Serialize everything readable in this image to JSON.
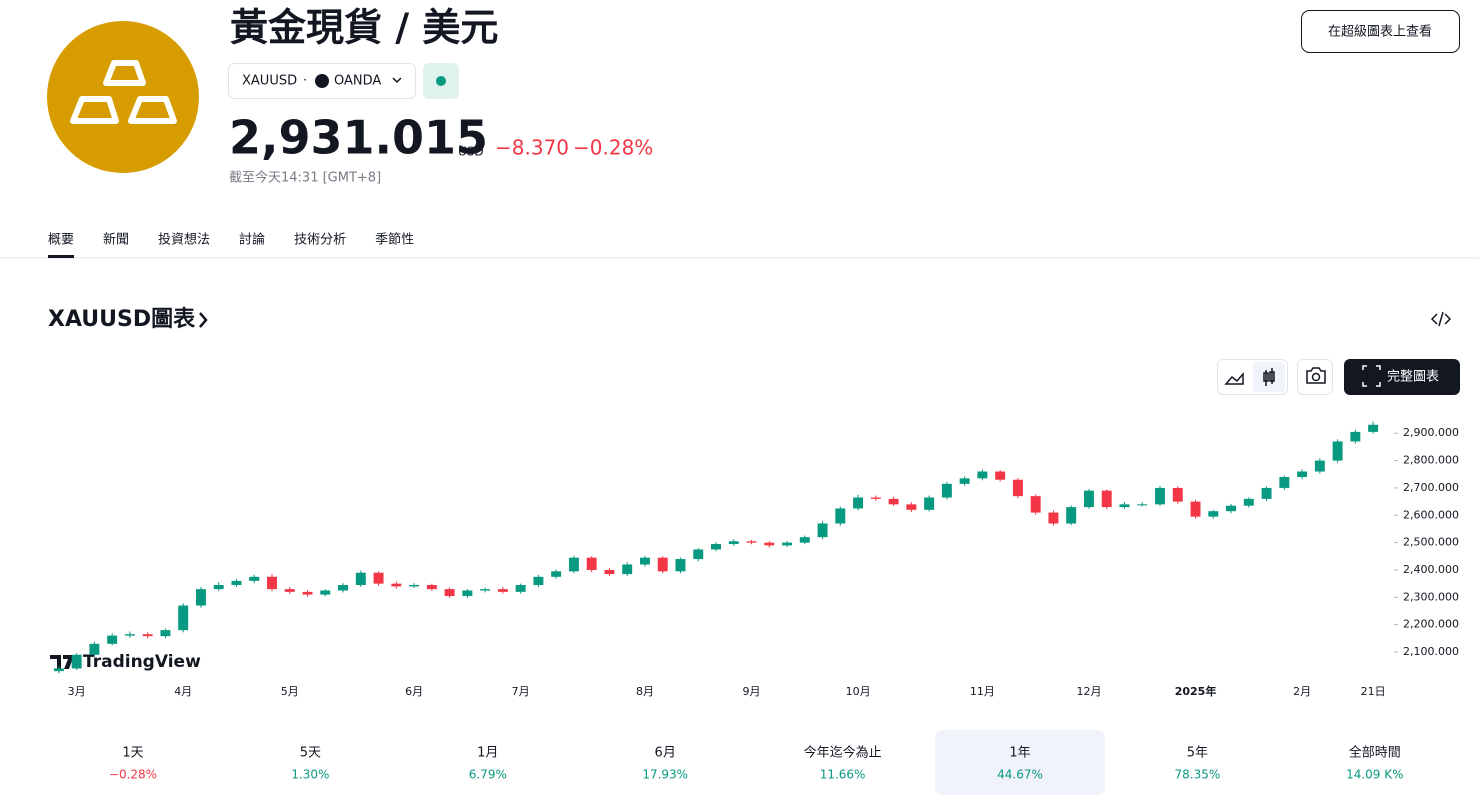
{
  "header": {
    "title": "黃金現貨 / 美元",
    "symbol": "XAUUSD",
    "separator": "·",
    "exchange": "OANDA",
    "price": "2,931.015",
    "currency": "USD",
    "change": "−8.370",
    "change_percent": "−0.28%",
    "change_color": "#f23645",
    "timestamp": "截至今天14:31 [GMT+8]",
    "supercharts_button": "在超級圖表上查看"
  },
  "tabs": [
    "概要",
    "新聞",
    "投資想法",
    "討論",
    "技術分析",
    "季節性"
  ],
  "section_title": "XAUUSD圖表",
  "full_chart_button": "完整圖表",
  "watermark": "TradingView",
  "chart_data": {
    "type": "candlestick",
    "up_color": "#089981",
    "down_color": "#f23645",
    "categories": [
      null,
      "3月",
      null,
      null,
      null,
      null,
      null,
      "4月",
      null,
      null,
      null,
      null,
      null,
      "5月",
      null,
      null,
      null,
      null,
      null,
      null,
      "6月",
      null,
      null,
      null,
      null,
      null,
      "7月",
      null,
      null,
      null,
      null,
      null,
      null,
      "8月",
      null,
      null,
      null,
      null,
      null,
      "9月",
      null,
      null,
      null,
      null,
      null,
      "10月",
      null,
      null,
      null,
      null,
      null,
      null,
      "11月",
      null,
      null,
      null,
      null,
      null,
      "12月",
      null,
      null,
      null,
      null,
      null,
      "2025年",
      null,
      null,
      null,
      null,
      null,
      "2月",
      null,
      null,
      null,
      "21日"
    ],
    "open": [
      2030,
      2040,
      2090,
      2130,
      2160,
      2165,
      2158,
      2180,
      2270,
      2330,
      2345,
      2360,
      2375,
      2330,
      2320,
      2310,
      2325,
      2345,
      2390,
      2350,
      2340,
      2345,
      2330,
      2305,
      2325,
      2330,
      2320,
      2345,
      2375,
      2395,
      2445,
      2400,
      2385,
      2420,
      2445,
      2395,
      2440,
      2475,
      2495,
      2505,
      2500,
      2490,
      2500,
      2520,
      2570,
      2625,
      2665,
      2660,
      2640,
      2620,
      2665,
      2715,
      2735,
      2760,
      2730,
      2670,
      2610,
      2570,
      2630,
      2690,
      2630,
      2640,
      2640,
      2700,
      2650,
      2595,
      2615,
      2635,
      2660,
      2700,
      2740,
      2760,
      2800,
      2870,
      2905
    ],
    "high": [
      2048,
      2095,
      2138,
      2168,
      2175,
      2172,
      2186,
      2278,
      2338,
      2356,
      2368,
      2382,
      2385,
      2338,
      2326,
      2330,
      2352,
      2398,
      2395,
      2358,
      2352,
      2350,
      2336,
      2330,
      2336,
      2338,
      2350,
      2382,
      2402,
      2452,
      2450,
      2408,
      2428,
      2452,
      2450,
      2446,
      2480,
      2502,
      2512,
      2510,
      2505,
      2506,
      2526,
      2578,
      2632,
      2675,
      2672,
      2668,
      2648,
      2672,
      2722,
      2742,
      2768,
      2766,
      2736,
      2676,
      2618,
      2636,
      2696,
      2695,
      2648,
      2648,
      2708,
      2706,
      2656,
      2620,
      2642,
      2666,
      2706,
      2746,
      2768,
      2808,
      2878,
      2912,
      2942
    ],
    "low": [
      2022,
      2034,
      2084,
      2124,
      2152,
      2150,
      2150,
      2172,
      2262,
      2322,
      2338,
      2352,
      2322,
      2312,
      2302,
      2304,
      2318,
      2338,
      2342,
      2332,
      2334,
      2324,
      2298,
      2298,
      2318,
      2314,
      2314,
      2338,
      2368,
      2388,
      2392,
      2378,
      2378,
      2412,
      2388,
      2388,
      2432,
      2468,
      2488,
      2494,
      2482,
      2484,
      2494,
      2512,
      2562,
      2618,
      2652,
      2634,
      2612,
      2614,
      2658,
      2708,
      2728,
      2724,
      2662,
      2602,
      2562,
      2564,
      2624,
      2622,
      2624,
      2632,
      2634,
      2642,
      2588,
      2588,
      2608,
      2628,
      2652,
      2692,
      2732,
      2752,
      2792,
      2862,
      2898
    ],
    "close": [
      2040,
      2090,
      2130,
      2160,
      2165,
      2158,
      2180,
      2270,
      2330,
      2345,
      2360,
      2375,
      2330,
      2320,
      2310,
      2325,
      2345,
      2390,
      2350,
      2340,
      2345,
      2330,
      2305,
      2325,
      2330,
      2320,
      2345,
      2375,
      2395,
      2445,
      2400,
      2385,
      2420,
      2445,
      2395,
      2440,
      2475,
      2495,
      2505,
      2500,
      2490,
      2500,
      2520,
      2570,
      2625,
      2665,
      2660,
      2640,
      2620,
      2665,
      2715,
      2735,
      2760,
      2730,
      2670,
      2610,
      2570,
      2630,
      2690,
      2630,
      2640,
      2640,
      2700,
      2650,
      2595,
      2615,
      2635,
      2660,
      2700,
      2740,
      2760,
      2800,
      2870,
      2905,
      2931
    ],
    "ylim": [
      2005,
      2985
    ],
    "yticks": [
      {
        "value": 2100,
        "label": "2,100.000"
      },
      {
        "value": 2200,
        "label": "2,200.000"
      },
      {
        "value": 2300,
        "label": "2,300.000"
      },
      {
        "value": 2400,
        "label": "2,400.000"
      },
      {
        "value": 2500,
        "label": "2,500.000"
      },
      {
        "value": 2600,
        "label": "2,600.000"
      },
      {
        "value": 2700,
        "label": "2,700.000"
      },
      {
        "value": 2800,
        "label": "2,800.000"
      },
      {
        "value": 2900,
        "label": "2,900.000"
      }
    ]
  },
  "periods": [
    {
      "label": "1天",
      "change": "−0.28%",
      "color": "#f23645"
    },
    {
      "label": "5天",
      "change": "1.30%",
      "color": "#089981"
    },
    {
      "label": "1月",
      "change": "6.79%",
      "color": "#089981"
    },
    {
      "label": "6月",
      "change": "17.93%",
      "color": "#089981"
    },
    {
      "label": "今年迄今為止",
      "change": "11.66%",
      "color": "#089981"
    },
    {
      "label": "1年",
      "change": "44.67%",
      "color": "#089981",
      "selected": true
    },
    {
      "label": "5年",
      "change": "78.35%",
      "color": "#089981"
    },
    {
      "label": "全部時間",
      "change": "14.09 K%",
      "color": "#089981"
    }
  ]
}
